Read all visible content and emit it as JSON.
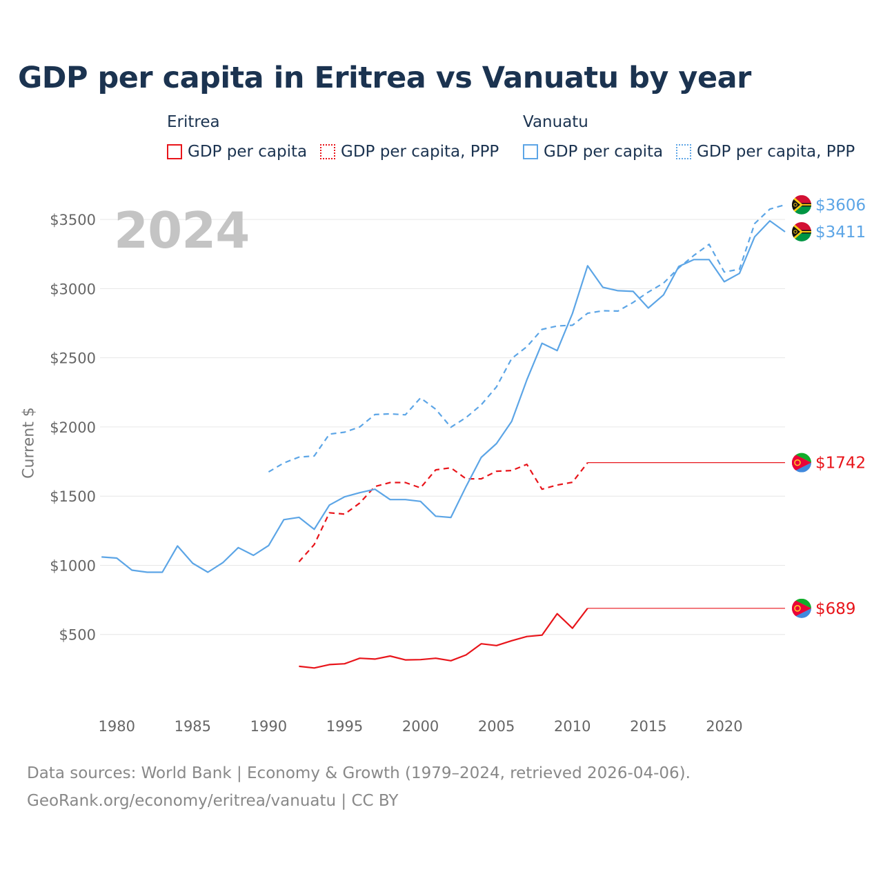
{
  "title": "GDP per capita in Eritrea vs Vanuatu by year",
  "year_display": "2024",
  "legend": {
    "groups": [
      {
        "name": "Eritrea",
        "items": [
          "GDP per capita",
          "GDP per capita, PPP"
        ]
      },
      {
        "name": "Vanuatu",
        "items": [
          "GDP per capita",
          "GDP per capita, PPP"
        ]
      }
    ]
  },
  "source_lines": [
    "Data sources: World Bank | Economy & Growth (1979–2024, retrieved 2026-04-06).",
    "GeoRank.org/economy/eritrea/vanuatu | CC BY"
  ],
  "colors": {
    "eritrea": "#e8141a",
    "vanuatu": "#5ca5e6"
  },
  "chart_data": {
    "type": "line",
    "title": "GDP per capita in Eritrea vs Vanuatu by year",
    "xlabel": "",
    "ylabel": "Current $",
    "xlim": [
      1978.9,
      2024
    ],
    "ylim": [
      0,
      3700
    ],
    "yticks": [
      500,
      1000,
      1500,
      2000,
      2500,
      3000,
      3500
    ],
    "ytick_labels": [
      "$500",
      "$1000",
      "$1500",
      "$2000",
      "$2500",
      "$3000",
      "$3500"
    ],
    "xticks": [
      1980,
      1985,
      1990,
      1995,
      2000,
      2005,
      2010,
      2015,
      2020
    ],
    "xtick_labels": [
      "1980",
      "1985",
      "1990",
      "1995",
      "2000",
      "2005",
      "2010",
      "2015",
      "2020"
    ],
    "grid": true,
    "series": [
      {
        "name": "Eritrea GDP per capita",
        "country": "Eritrea",
        "color": "#e8141a",
        "dash": "solid",
        "end_label": "$689",
        "x": [
          1992,
          1993,
          1994,
          1995,
          1996,
          1997,
          1998,
          1999,
          2000,
          2001,
          2002,
          2003,
          2004,
          2005,
          2006,
          2007,
          2008,
          2009,
          2010,
          2011
        ],
        "values": [
          270,
          258,
          282,
          288,
          328,
          322,
          344,
          316,
          318,
          328,
          310,
          352,
          433,
          420,
          455,
          485,
          495,
          650,
          545,
          689
        ],
        "carry_forward_to": 2024
      },
      {
        "name": "Eritrea GDP per capita, PPP",
        "country": "Eritrea",
        "color": "#e8141a",
        "dash": "dashed",
        "end_label": "$1742",
        "x": [
          1992,
          1993,
          1994,
          1995,
          1996,
          1997,
          1998,
          1999,
          2000,
          2001,
          2002,
          2003,
          2004,
          2005,
          2006,
          2007,
          2008,
          2009,
          2010,
          2011
        ],
        "values": [
          1025,
          1150,
          1380,
          1370,
          1450,
          1570,
          1598,
          1598,
          1560,
          1690,
          1705,
          1625,
          1625,
          1680,
          1685,
          1730,
          1550,
          1580,
          1600,
          1742
        ],
        "carry_forward_to": 2024
      },
      {
        "name": "Vanuatu GDP per capita",
        "country": "Vanuatu",
        "color": "#5ca5e6",
        "dash": "solid",
        "end_label": "$3411",
        "x": [
          1979,
          1980,
          1981,
          1982,
          1983,
          1984,
          1985,
          1986,
          1987,
          1988,
          1989,
          1990,
          1991,
          1992,
          1993,
          1994,
          1995,
          1996,
          1997,
          1998,
          1999,
          2000,
          2001,
          2002,
          2003,
          2004,
          2005,
          2006,
          2007,
          2008,
          2009,
          2010,
          2011,
          2012,
          2013,
          2014,
          2015,
          2016,
          2017,
          2018,
          2019,
          2020,
          2021,
          2022,
          2023,
          2024
        ],
        "values": [
          1060,
          1052,
          965,
          950,
          950,
          1140,
          1015,
          950,
          1020,
          1128,
          1072,
          1143,
          1330,
          1347,
          1260,
          1435,
          1495,
          1525,
          1550,
          1475,
          1475,
          1462,
          1355,
          1346,
          1570,
          1780,
          1880,
          2040,
          2340,
          2605,
          2552,
          2820,
          3165,
          3010,
          2985,
          2980,
          2860,
          2955,
          3160,
          3210,
          3210,
          3050,
          3110,
          3375,
          3490,
          3411
        ]
      },
      {
        "name": "Vanuatu GDP per capita, PPP",
        "country": "Vanuatu",
        "color": "#5ca5e6",
        "dash": "dashed",
        "end_label": "$3606",
        "x": [
          1990,
          1991,
          1992,
          1993,
          1994,
          1995,
          1996,
          1997,
          1998,
          1999,
          2000,
          2001,
          2002,
          2003,
          2004,
          2005,
          2006,
          2007,
          2008,
          2009,
          2010,
          2011,
          2012,
          2013,
          2014,
          2015,
          2016,
          2017,
          2018,
          2019,
          2020,
          2021,
          2022,
          2023,
          2024
        ],
        "values": [
          1675,
          1740,
          1782,
          1790,
          1948,
          1962,
          2000,
          2090,
          2095,
          2088,
          2210,
          2128,
          1998,
          2068,
          2160,
          2290,
          2495,
          2580,
          2705,
          2730,
          2735,
          2822,
          2840,
          2838,
          2900,
          2975,
          3040,
          3150,
          3240,
          3320,
          3120,
          3140,
          3470,
          3575,
          3606
        ]
      }
    ]
  }
}
